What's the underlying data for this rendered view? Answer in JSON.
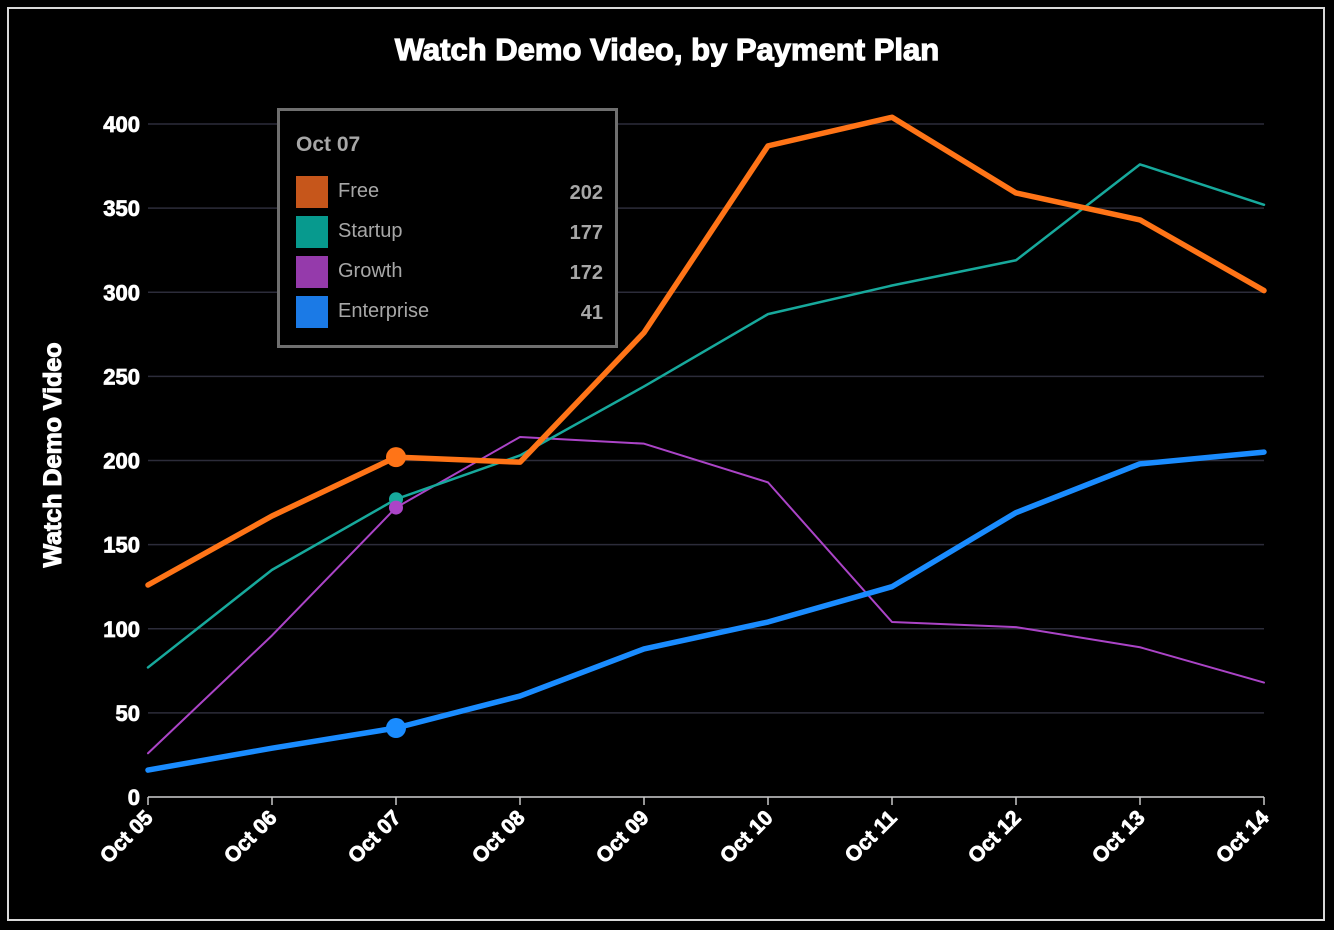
{
  "chart_data": {
    "type": "line",
    "title": "Watch Demo Video, by Payment Plan",
    "ylabel": "Watch Demo Video",
    "xlabel": "",
    "categories": [
      "Oct 05",
      "Oct 06",
      "Oct 07",
      "Oct 08",
      "Oct 09",
      "Oct 10",
      "Oct 11",
      "Oct 12",
      "Oct 13",
      "Oct 14"
    ],
    "ylim": [
      0,
      400
    ],
    "yticks": [
      "0",
      "50",
      "100",
      "150",
      "200",
      "250",
      "300",
      "350",
      "400"
    ],
    "grid": true,
    "series": [
      {
        "name": "Free",
        "color": "#ff7417",
        "legend_color": "#c6561b",
        "values": [
          126,
          167,
          202,
          199,
          276,
          387,
          404,
          359,
          343,
          301
        ]
      },
      {
        "name": "Startup",
        "color": "#17a99c",
        "legend_color": "#079a8e",
        "values": [
          77,
          135,
          177,
          203,
          244,
          287,
          304,
          319,
          376,
          352
        ]
      },
      {
        "name": "Growth",
        "color": "#ab44c7",
        "legend_color": "#953aab",
        "values": [
          26,
          96,
          172,
          214,
          210,
          187,
          104,
          101,
          89,
          68
        ]
      },
      {
        "name": "Enterprise",
        "color": "#1a8cff",
        "legend_color": "#1b7ae6",
        "values": [
          16,
          29,
          41,
          60,
          88,
          104,
          125,
          169,
          198,
          205
        ]
      }
    ],
    "highlight_index": 2
  },
  "tooltip": {
    "title": "Oct 07",
    "rows": [
      {
        "label": "Free",
        "value": "202"
      },
      {
        "label": "Startup",
        "value": "177"
      },
      {
        "label": "Growth",
        "value": "172"
      },
      {
        "label": "Enterprise",
        "value": "41"
      }
    ]
  }
}
